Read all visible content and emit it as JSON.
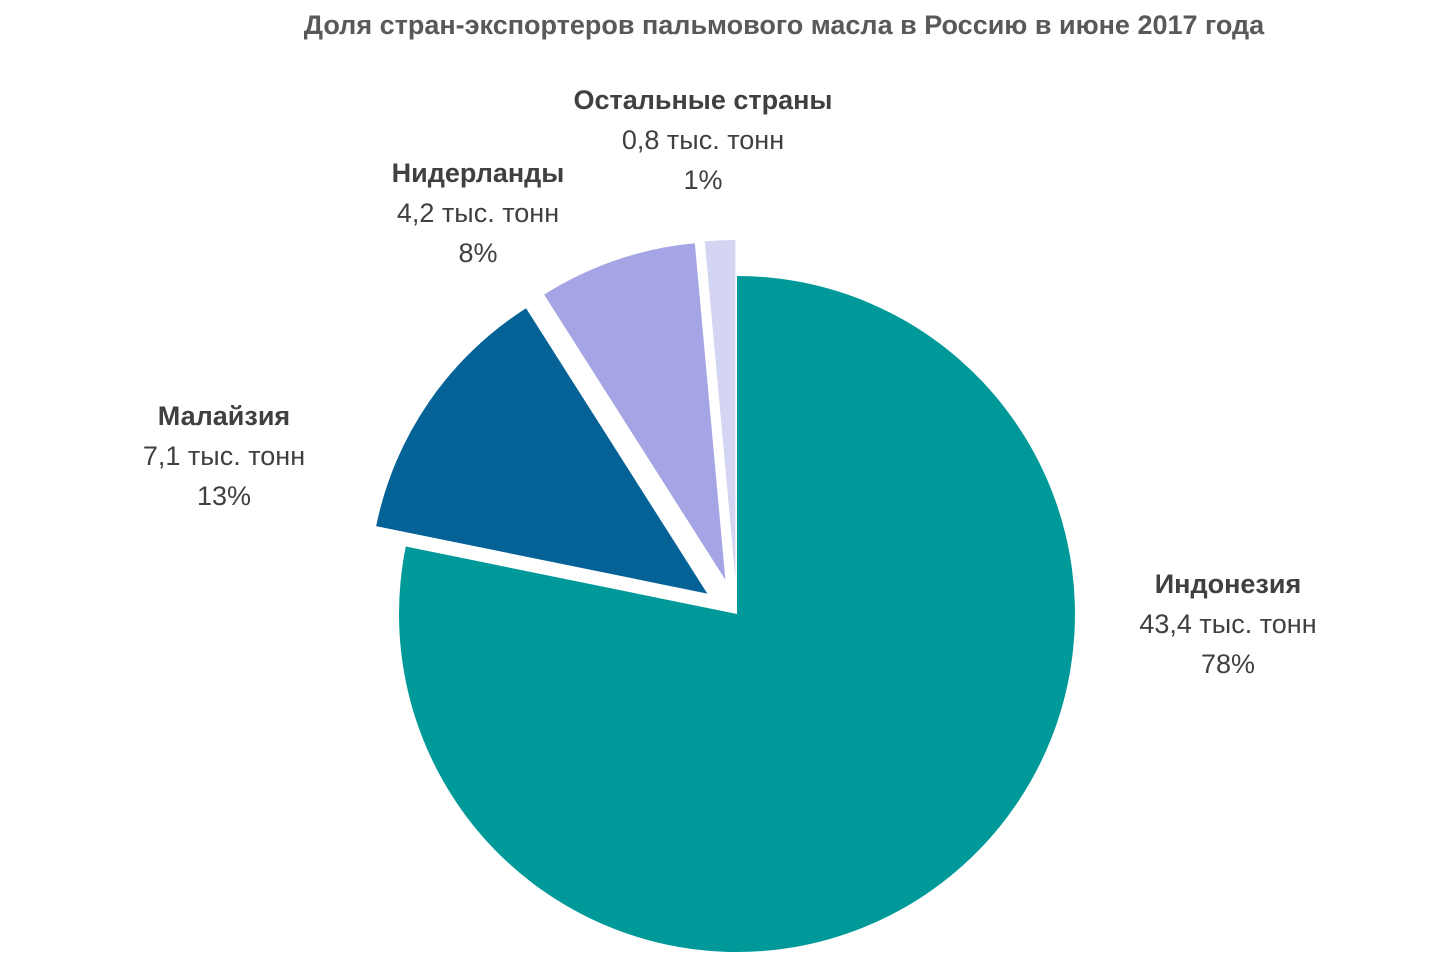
{
  "chart_data": {
    "type": "pie",
    "title": "Доля стран-экспортеров пальмового масла в Россию в июне 2017 года",
    "slices": [
      {
        "name": "Индонезия",
        "amount": 43.4,
        "amount_label": "43,4 тыс. тонн",
        "percent": 78,
        "percent_label": "78%",
        "color": "#009999",
        "exploded": false
      },
      {
        "name": "Малайзия",
        "amount": 7.1,
        "amount_label": "7,1 тыс. тонн",
        "percent": 13,
        "percent_label": "13%",
        "color": "#046296",
        "exploded": true
      },
      {
        "name": "Нидерланды",
        "amount": 4.2,
        "amount_label": "4,2 тыс. тонн",
        "percent": 8,
        "percent_label": "8%",
        "color": "#a5a5e6",
        "exploded": true
      },
      {
        "name": "Остальные страны",
        "amount": 0.8,
        "amount_label": "0,8 тыс. тонн",
        "percent": 1,
        "percent_label": "1%",
        "color": "#d4d4f3",
        "exploded": true
      }
    ]
  }
}
